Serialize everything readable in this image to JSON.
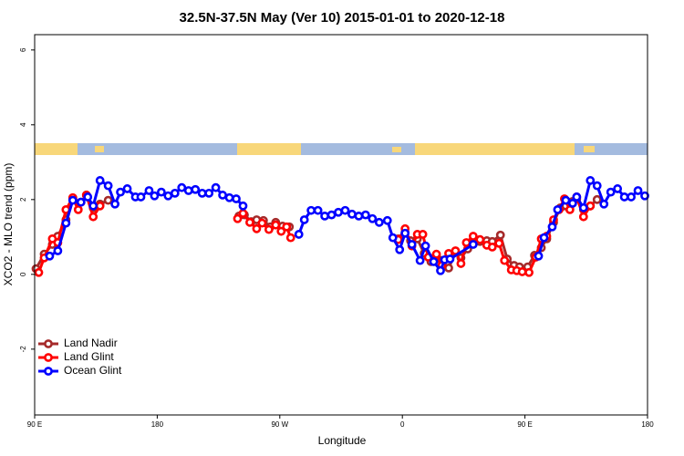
{
  "chart_data": {
    "type": "line",
    "title": "32.5N-37.5N May (Ver 10)   2015-01-01 to 2020-12-18",
    "x_label": "Longitude",
    "y_label": "XCO2 - MLO trend (ppm)",
    "xlim": [
      90,
      540
    ],
    "ylim": [
      -3.76,
      6.41
    ],
    "xticks": [
      {
        "value": 90,
        "label": "90 E"
      },
      180,
      {
        "value": 270,
        "label": "90 W"
      },
      {
        "value": 360,
        "label": "0"
      },
      {
        "value": 450,
        "label": "90 E"
      },
      {
        "value": 540,
        "label": "180"
      }
    ],
    "yticks": [
      -2,
      0,
      2,
      4,
      6
    ],
    "legend": "bottomleft",
    "series": [
      {
        "name": "Land Nadir",
        "color": "#a52a2a",
        "x": [
          91,
          97,
          103,
          107,
          113,
          118,
          124,
          128,
          133,
          138,
          144,
          190,
          240,
          244,
          249,
          253,
          258,
          263,
          267,
          272,
          277,
          320,
          357,
          362,
          366,
          371,
          376,
          381,
          385,
          389,
          394,
          399,
          403,
          408,
          412,
          417,
          422,
          426,
          432,
          437,
          442,
          446,
          452,
          457,
          462,
          466,
          471,
          476,
          480,
          485,
          488,
          493,
          498,
          503
        ],
        "values": [
          0.15,
          0.54,
          0.8,
          1.02,
          1.46,
          2.02,
          1.93,
          2.12,
          1.78,
          1.88,
          1.98,
          null,
          1.56,
          1.59,
          1.41,
          1.46,
          1.44,
          1.27,
          1.39,
          1.29,
          1.27,
          null,
          0.95,
          1.12,
          0.9,
          0.95,
          0.56,
          0.34,
          0.49,
          0.37,
          0.17,
          0.59,
          0.44,
          0.68,
          0.85,
          0.88,
          0.9,
          0.88,
          1.05,
          0.41,
          0.24,
          0.2,
          0.2,
          0.51,
          0.71,
          0.95,
          1.39,
          1.78,
          1.83,
          1.95,
          2.02,
          1.73,
          1.83,
          2.0
        ]
      },
      {
        "name": "Land Glint",
        "color": "#ff0000",
        "x": [
          93,
          97,
          103,
          107,
          113,
          118,
          122,
          128,
          133,
          138,
          190,
          239,
          243,
          248,
          253,
          257,
          262,
          267,
          271,
          275,
          278,
          320,
          357,
          362,
          367,
          371,
          375,
          379,
          385,
          389,
          394,
          399,
          403,
          407,
          412,
          417,
          422,
          426,
          431,
          435,
          440,
          444,
          448,
          453,
          458,
          462,
          466,
          471,
          475,
          479,
          483,
          488,
          493,
          498
        ],
        "values": [
          0.05,
          0.44,
          0.95,
          0.85,
          1.73,
          2.05,
          1.73,
          2.12,
          1.54,
          1.83,
          null,
          1.49,
          1.63,
          1.39,
          1.22,
          1.37,
          1.2,
          1.32,
          1.15,
          1.27,
          0.98,
          null,
          0.93,
          1.22,
          0.76,
          1.07,
          1.07,
          0.46,
          0.54,
          0.24,
          0.56,
          0.63,
          0.29,
          0.85,
          1.02,
          0.93,
          0.78,
          0.73,
          0.83,
          0.37,
          0.12,
          0.1,
          0.07,
          0.05,
          0.46,
          0.95,
          1.02,
          1.46,
          1.73,
          2.02,
          1.73,
          2.07,
          1.54,
          1.83
        ]
      },
      {
        "name": "Ocean Glint",
        "color": "#0000ff",
        "x": [
          101,
          107,
          113,
          118,
          124,
          129,
          133,
          138,
          144,
          149,
          153,
          158,
          164,
          168,
          174,
          178,
          183,
          188,
          193,
          198,
          203,
          208,
          213,
          218,
          223,
          228,
          233,
          238,
          243,
          260,
          284,
          288,
          293,
          298,
          303,
          308,
          313,
          318,
          323,
          328,
          333,
          338,
          343,
          349,
          353,
          358,
          362,
          367,
          373,
          377,
          383,
          388,
          391,
          395,
          412,
          440,
          460,
          464,
          470,
          474,
          480,
          485,
          488,
          493,
          498,
          503,
          508,
          513,
          518,
          523,
          528,
          533,
          538
        ],
        "values": [
          0.49,
          0.63,
          1.37,
          1.98,
          1.93,
          2.07,
          1.83,
          2.51,
          2.37,
          1.88,
          2.2,
          2.29,
          2.07,
          2.07,
          2.24,
          2.1,
          2.2,
          2.1,
          2.17,
          2.32,
          2.24,
          2.27,
          2.17,
          2.17,
          2.32,
          2.12,
          2.05,
          2.02,
          1.83,
          null,
          1.07,
          1.46,
          1.71,
          1.71,
          1.56,
          1.59,
          1.66,
          1.71,
          1.61,
          1.56,
          1.59,
          1.49,
          1.39,
          1.44,
          0.98,
          0.66,
          1.1,
          0.8,
          0.37,
          0.76,
          0.34,
          0.1,
          0.39,
          0.41,
          0.8,
          null,
          0.49,
          0.98,
          1.27,
          1.73,
          1.98,
          1.9,
          2.07,
          1.78,
          2.51,
          2.37,
          1.88,
          2.2,
          2.29,
          2.07,
          2.07,
          2.24,
          2.1
        ]
      }
    ]
  }
}
